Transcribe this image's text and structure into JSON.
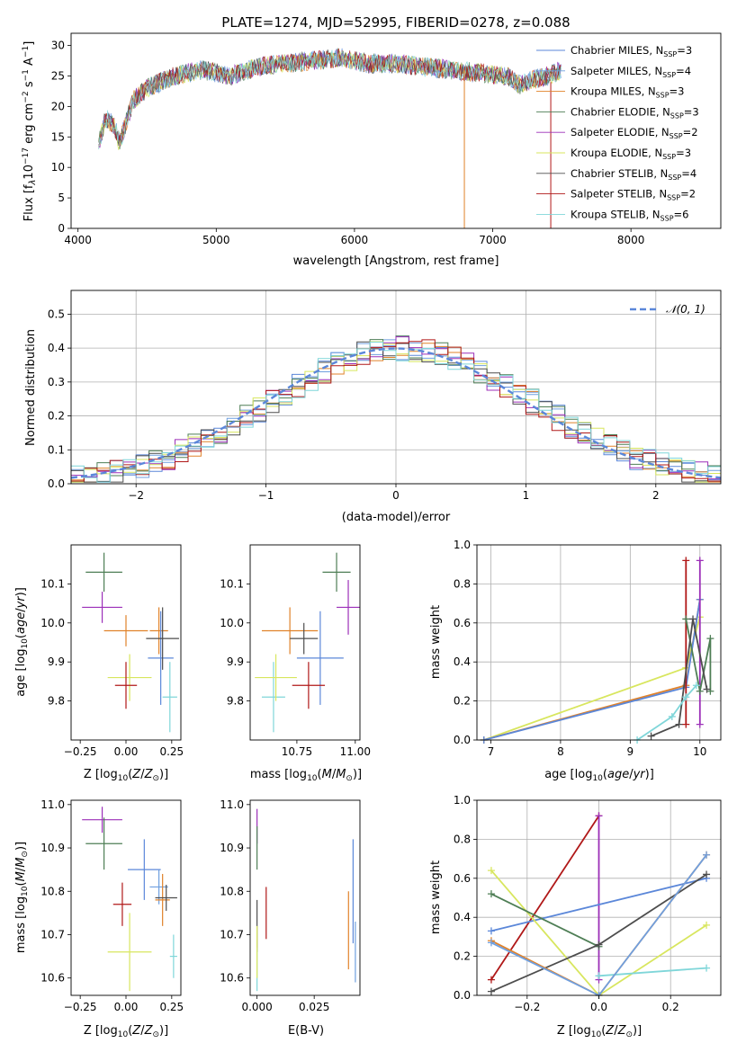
{
  "figure": {
    "title": "PLATE=1274, MJD=52995, FIBERID=0278, z=0.088"
  },
  "colors": [
    "#5b87d9",
    "#6f9fdf",
    "#e0822a",
    "#4e7e55",
    "#9c2fb8",
    "#d8e65e",
    "#4d4d4d",
    "#b01818",
    "#7fd6d9"
  ],
  "chart_data": [
    {
      "id": "spectrum",
      "type": "line",
      "title": "PLATE=1274, MJD=52995, FIBERID=0278, z=0.088",
      "xlabel": "wavelength [Angstrom, rest frame]",
      "ylabel": "Flux [f_λ 10^-17 erg cm^-2 s^-1 A^-1]",
      "xlim": [
        3950,
        8650
      ],
      "ylim": [
        0,
        32
      ],
      "xticks": [
        "4000",
        "5000",
        "6000",
        "7000",
        "8000"
      ],
      "yticks": [
        "0",
        "5",
        "10",
        "15",
        "20",
        "25",
        "30"
      ],
      "legend": "top-right",
      "x": [
        4150,
        4200,
        4260,
        4300,
        4400,
        4500,
        4700,
        4900,
        5100,
        5300,
        5500,
        5700,
        5900,
        6100,
        6300,
        6500,
        6700,
        6900,
        7100,
        7200,
        7300,
        7400,
        7500
      ],
      "y": [
        14,
        18,
        17,
        14,
        21,
        23,
        25,
        26,
        25,
        26.5,
        27,
        27.5,
        28,
        27,
        27,
        26.5,
        26,
        25.5,
        25,
        23.5,
        24.5,
        25,
        26
      ],
      "series": [
        {
          "name": "Chabrier MILES, N_SSP=3"
        },
        {
          "name": "Salpeter MILES, N_SSP=4"
        },
        {
          "name": "Kroupa MILES, N_SSP=3"
        },
        {
          "name": "Chabrier ELODIE, N_SSP=3"
        },
        {
          "name": "Salpeter ELODIE, N_SSP=2"
        },
        {
          "name": "Kroupa ELODIE, N_SSP=3"
        },
        {
          "name": "Chabrier STELIB, N_SSP=4"
        },
        {
          "name": "Salpeter STELIB, N_SSP=2"
        },
        {
          "name": "Kroupa STELIB, N_SSP=6"
        }
      ]
    },
    {
      "id": "residuals",
      "type": "line",
      "xlabel": "(data-model)/error",
      "ylabel": "Normed distribution",
      "xlim": [
        -2.5,
        2.5
      ],
      "ylim": [
        0,
        0.57
      ],
      "xticks": [
        "−2",
        "−1",
        "0",
        "1",
        "2"
      ],
      "yticks": [
        "0.0",
        "0.1",
        "0.2",
        "0.3",
        "0.4",
        "0.5"
      ],
      "grid": true,
      "legend": "top-right",
      "reference": {
        "name": "𝒩(0, 1)",
        "mean": 0,
        "sigma": 1
      }
    },
    {
      "id": "age-vs-z",
      "type": "scatter",
      "xlabel": "Z [log10(Z/Z⊙)]",
      "ylabel": "age [log10(age/yr)]",
      "xlim": [
        -0.3,
        0.3
      ],
      "ylim": [
        9.7,
        10.2
      ],
      "xticks": [
        "−0.25",
        "0.00",
        "0.25"
      ],
      "yticks": [
        "9.8",
        "9.9",
        "10.0",
        "10.1"
      ],
      "points": [
        {
          "x": -0.13,
          "y": 10.04,
          "xerr": 0.11,
          "yerr": 0.04,
          "c": 4
        },
        {
          "x": -0.12,
          "y": 10.13,
          "xerr": 0.1,
          "yerr": 0.05,
          "c": 3
        },
        {
          "x": 0.0,
          "y": 9.98,
          "xerr": 0.12,
          "yerr": 0.04,
          "c": 2
        },
        {
          "x": 0.02,
          "y": 9.86,
          "xerr": 0.12,
          "yerr": 0.06,
          "c": 5
        },
        {
          "x": 0.18,
          "y": 9.98,
          "xerr": 0.05,
          "yerr": 0.06,
          "c": 2
        },
        {
          "x": 0.19,
          "y": 9.91,
          "xerr": 0.07,
          "yerr": 0.12,
          "c": 0
        },
        {
          "x": 0.2,
          "y": 9.96,
          "xerr": 0.09,
          "yerr": 0.08,
          "c": 6
        },
        {
          "x": 0.24,
          "y": 9.81,
          "xerr": 0.04,
          "yerr": 0.09,
          "c": 8
        },
        {
          "x": 0.0,
          "y": 9.84,
          "xerr": 0.06,
          "yerr": 0.06,
          "c": 7
        }
      ]
    },
    {
      "id": "age-vs-mass",
      "type": "scatter",
      "xlabel": "mass [log10(M/M⊙)]",
      "xlim": [
        10.55,
        11.02
      ],
      "ylim": [
        9.7,
        10.2
      ],
      "xticks": [
        "10.75",
        "11.00"
      ],
      "yticks": [
        "9.8",
        "9.9",
        "10.0",
        "10.1"
      ],
      "points": [
        {
          "x": 10.72,
          "y": 9.98,
          "xerr": 0.12,
          "yerr": 0.06,
          "c": 2
        },
        {
          "x": 10.78,
          "y": 9.96,
          "xerr": 0.06,
          "yerr": 0.04,
          "c": 6
        },
        {
          "x": 10.85,
          "y": 9.91,
          "xerr": 0.1,
          "yerr": 0.12,
          "c": 0
        },
        {
          "x": 10.65,
          "y": 9.81,
          "xerr": 0.05,
          "yerr": 0.09,
          "c": 8
        },
        {
          "x": 10.66,
          "y": 9.86,
          "xerr": 0.09,
          "yerr": 0.06,
          "c": 5
        },
        {
          "x": 10.8,
          "y": 9.84,
          "xerr": 0.07,
          "yerr": 0.06,
          "c": 7
        },
        {
          "x": 10.92,
          "y": 10.13,
          "xerr": 0.06,
          "yerr": 0.05,
          "c": 3
        },
        {
          "x": 10.97,
          "y": 10.04,
          "xerr": 0.05,
          "yerr": 0.07,
          "c": 4
        }
      ]
    },
    {
      "id": "weight-vs-age",
      "type": "line",
      "xlabel": "age [log10(age/yr)]",
      "ylabel": "mass weight",
      "xlim": [
        6.8,
        10.3
      ],
      "ylim": [
        0,
        1
      ],
      "xticks": [
        "7",
        "8",
        "9",
        "10"
      ],
      "yticks": [
        "0.0",
        "0.2",
        "0.4",
        "0.6",
        "0.8",
        "1.0"
      ],
      "grid": true,
      "series": [
        {
          "c": 5,
          "x": [
            6.9,
            9.8,
            10.0
          ],
          "y": [
            0.0,
            0.37,
            0.63
          ]
        },
        {
          "c": 2,
          "x": [
            6.9,
            9.8,
            10.0
          ],
          "y": [
            0.0,
            0.28,
            0.72
          ]
        },
        {
          "c": 0,
          "x": [
            6.9,
            9.8,
            10.0
          ],
          "y": [
            0.0,
            0.27,
            0.72
          ]
        },
        {
          "c": 7,
          "x": [
            9.8,
            9.8
          ],
          "y": [
            0.08,
            0.92
          ]
        },
        {
          "c": 4,
          "x": [
            10.0,
            10.0
          ],
          "y": [
            0.08,
            0.92
          ]
        },
        {
          "c": 3,
          "x": [
            9.8,
            10.0,
            10.15,
            10.15
          ],
          "y": [
            0.62,
            0.25,
            0.52,
            0.25
          ]
        },
        {
          "c": 6,
          "x": [
            9.3,
            9.7,
            9.9,
            10.1
          ],
          "y": [
            0.02,
            0.08,
            0.62,
            0.26
          ]
        },
        {
          "c": 8,
          "x": [
            9.1,
            9.6,
            9.8,
            9.95
          ],
          "y": [
            0.0,
            0.12,
            0.22,
            0.28
          ]
        }
      ]
    },
    {
      "id": "mass-vs-z",
      "type": "scatter",
      "xlabel": "Z [log10(Z/Z⊙)]",
      "ylabel": "mass [log10(M/M⊙)]",
      "xlim": [
        -0.3,
        0.3
      ],
      "ylim": [
        10.56,
        11.01
      ],
      "xticks": [
        "−0.25",
        "0.00",
        "0.25"
      ],
      "yticks": [
        "10.6",
        "10.7",
        "10.8",
        "10.9",
        "11.0"
      ],
      "points": [
        {
          "x": -0.13,
          "y": 10.965,
          "xerr": 0.11,
          "yerr": 0.03,
          "c": 4
        },
        {
          "x": -0.12,
          "y": 10.91,
          "xerr": 0.1,
          "yerr": 0.06,
          "c": 3
        },
        {
          "x": 0.02,
          "y": 10.66,
          "xerr": 0.12,
          "yerr": 0.09,
          "c": 5
        },
        {
          "x": -0.02,
          "y": 10.77,
          "xerr": 0.05,
          "yerr": 0.05,
          "c": 7
        },
        {
          "x": 0.1,
          "y": 10.85,
          "xerr": 0.09,
          "yerr": 0.07,
          "c": 0
        },
        {
          "x": 0.18,
          "y": 10.81,
          "xerr": 0.05,
          "yerr": 0.04,
          "c": 1
        },
        {
          "x": 0.2,
          "y": 10.78,
          "xerr": 0.04,
          "yerr": 0.06,
          "c": 2
        },
        {
          "x": 0.22,
          "y": 10.785,
          "xerr": 0.06,
          "yerr": 0.03,
          "c": 6
        },
        {
          "x": 0.26,
          "y": 10.65,
          "xerr": 0.02,
          "yerr": 0.05,
          "c": 8
        }
      ]
    },
    {
      "id": "mass-vs-ebv",
      "type": "scatter",
      "xlabel": "E(B-V)",
      "xlim": [
        -0.003,
        0.045
      ],
      "ylim": [
        10.56,
        11.01
      ],
      "xticks": [
        "0.000",
        "0.025"
      ],
      "yticks": [
        "10.6",
        "10.7",
        "10.8",
        "10.9",
        "11.0"
      ],
      "points": [
        {
          "x": 0.0,
          "y": 10.95,
          "yerr": 0.04,
          "c": 4
        },
        {
          "x": 0.0,
          "y": 10.9,
          "yerr": 0.05,
          "c": 3
        },
        {
          "x": 0.0,
          "y": 10.72,
          "yerr": 0.06,
          "c": 6
        },
        {
          "x": 0.0,
          "y": 10.62,
          "yerr": 0.05,
          "c": 8
        },
        {
          "x": 0.0,
          "y": 10.66,
          "yerr": 0.06,
          "c": 5
        },
        {
          "x": 0.004,
          "y": 10.75,
          "yerr": 0.06,
          "c": 7
        },
        {
          "x": 0.04,
          "y": 10.71,
          "yerr": 0.09,
          "c": 2
        },
        {
          "x": 0.042,
          "y": 10.8,
          "yerr": 0.12,
          "c": 0
        },
        {
          "x": 0.043,
          "y": 10.66,
          "yerr": 0.07,
          "c": 1
        }
      ]
    },
    {
      "id": "weight-vs-z",
      "type": "line",
      "xlabel": "Z [log10(Z/Z⊙)]",
      "ylabel": "mass weight",
      "xlim": [
        -0.34,
        0.34
      ],
      "ylim": [
        0,
        1
      ],
      "xticks": [
        "−0.2",
        "0.0",
        "0.2"
      ],
      "yticks": [
        "0.0",
        "0.2",
        "0.4",
        "0.6",
        "0.8",
        "1.0"
      ],
      "grid": true,
      "series": [
        {
          "c": 7,
          "x": [
            -0.3,
            0.0
          ],
          "y": [
            0.08,
            0.92
          ]
        },
        {
          "c": 4,
          "x": [
            0.0,
            0.0
          ],
          "y": [
            0.92,
            0.08
          ]
        },
        {
          "c": 0,
          "x": [
            -0.3,
            0.3
          ],
          "y": [
            0.33,
            0.6
          ]
        },
        {
          "c": 5,
          "x": [
            -0.3,
            0.0,
            0.3
          ],
          "y": [
            0.64,
            0.0,
            0.36
          ]
        },
        {
          "c": 3,
          "x": [
            -0.3,
            0.0
          ],
          "y": [
            0.52,
            0.25
          ]
        },
        {
          "c": 6,
          "x": [
            -0.3,
            0.0,
            0.3
          ],
          "y": [
            0.02,
            0.26,
            0.62
          ]
        },
        {
          "c": 8,
          "x": [
            0.0,
            0.3
          ],
          "y": [
            0.1,
            0.14
          ]
        },
        {
          "c": 2,
          "x": [
            -0.3,
            0.0,
            0.3
          ],
          "y": [
            0.28,
            0.0,
            0.72
          ]
        },
        {
          "c": 1,
          "x": [
            -0.3,
            0.0,
            0.3
          ],
          "y": [
            0.27,
            0.0,
            0.72
          ]
        }
      ]
    }
  ]
}
